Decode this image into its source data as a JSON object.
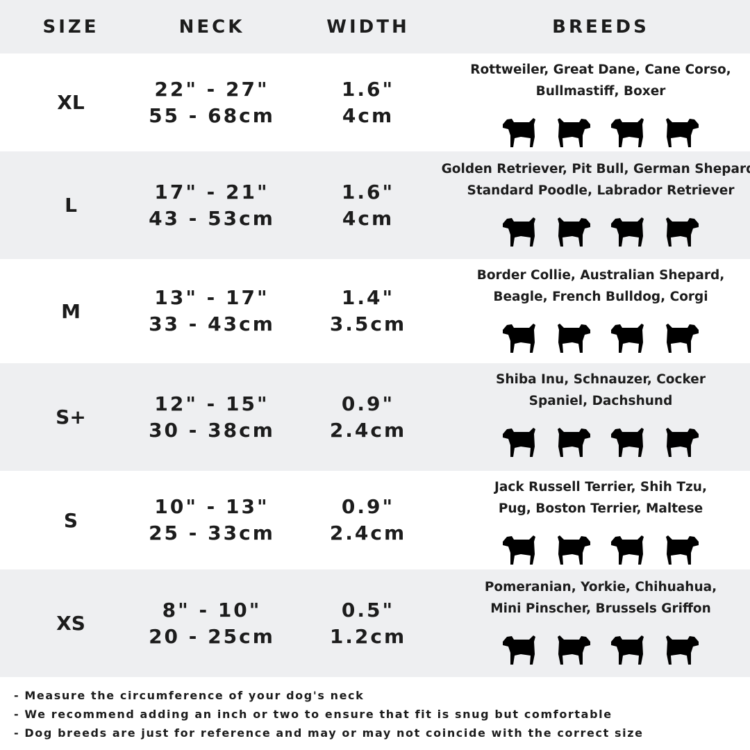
{
  "header": {
    "size": "SIZE",
    "neck": "NECK",
    "width": "WIDTH",
    "breeds": "BREEDS"
  },
  "colors": {
    "band": "#eeeff1",
    "text": "#1c1c1c"
  },
  "rows": [
    {
      "size": "XL",
      "neck_in": "22\" - 27\"",
      "neck_cm": "55 - 68cm",
      "width_in": "1.6\"",
      "width_cm": "4cm",
      "breeds": [
        "Rottweiler, Great Dane, Cane Corso,",
        "Bullmastiff, Boxer"
      ],
      "dogs": [
        "rottweiler",
        "great-dane",
        "cane-corso",
        "bullmastiff"
      ]
    },
    {
      "size": "L",
      "neck_in": "17\" - 21\"",
      "neck_cm": "43 - 53cm",
      "width_in": "1.6\"",
      "width_cm": "4cm",
      "breeds": [
        "Golden Retriever, Pit Bull, German Shepard,",
        "Standard Poodle, Labrador Retriever"
      ],
      "dogs": [
        "golden-retriever",
        "labrador",
        "poodle",
        "german-shepherd"
      ]
    },
    {
      "size": "M",
      "neck_in": "13\" - 17\"",
      "neck_cm": "33 - 43cm",
      "width_in": "1.4\"",
      "width_cm": "3.5cm",
      "breeds": [
        "Border Collie, Australian Shepard,",
        "Beagle, French Bulldog, Corgi"
      ],
      "dogs": [
        "border-collie",
        "beagle",
        "french-bulldog",
        "corgi"
      ]
    },
    {
      "size": "S+",
      "neck_in": "12\" - 15\"",
      "neck_cm": "30 - 38cm",
      "width_in": "0.9\"",
      "width_cm": "2.4cm",
      "breeds": [
        "Shiba Inu, Schnauzer, Cocker",
        "Spaniel, Dachshund"
      ],
      "dogs": [
        "shiba-inu",
        "schnauzer",
        "cocker-spaniel",
        "dachshund"
      ]
    },
    {
      "size": "S",
      "neck_in": "10\" - 13\"",
      "neck_cm": "25 - 33cm",
      "width_in": "0.9\"",
      "width_cm": "2.4cm",
      "breeds": [
        "Jack Russell Terrier, Shih Tzu,",
        "Pug, Boston Terrier, Maltese"
      ],
      "dogs": [
        "jack-russell",
        "shih-tzu",
        "pug",
        "maltese"
      ]
    },
    {
      "size": "XS",
      "neck_in": "8\" - 10\"",
      "neck_cm": "20 - 25cm",
      "width_in": "0.5\"",
      "width_cm": "1.2cm",
      "breeds": [
        "Pomeranian, Yorkie, Chihuahua,",
        "Mini Pinscher, Brussels Griffon"
      ],
      "dogs": [
        "pomeranian",
        "yorkie",
        "chihuahua",
        "mini-pinscher"
      ]
    }
  ],
  "notes": [
    "- Measure the circumference of your dog's neck",
    "- We recommend adding an inch or two to ensure that fit is snug but comfortable",
    "- Dog breeds are just for reference and may or may not coincide with the correct size"
  ]
}
